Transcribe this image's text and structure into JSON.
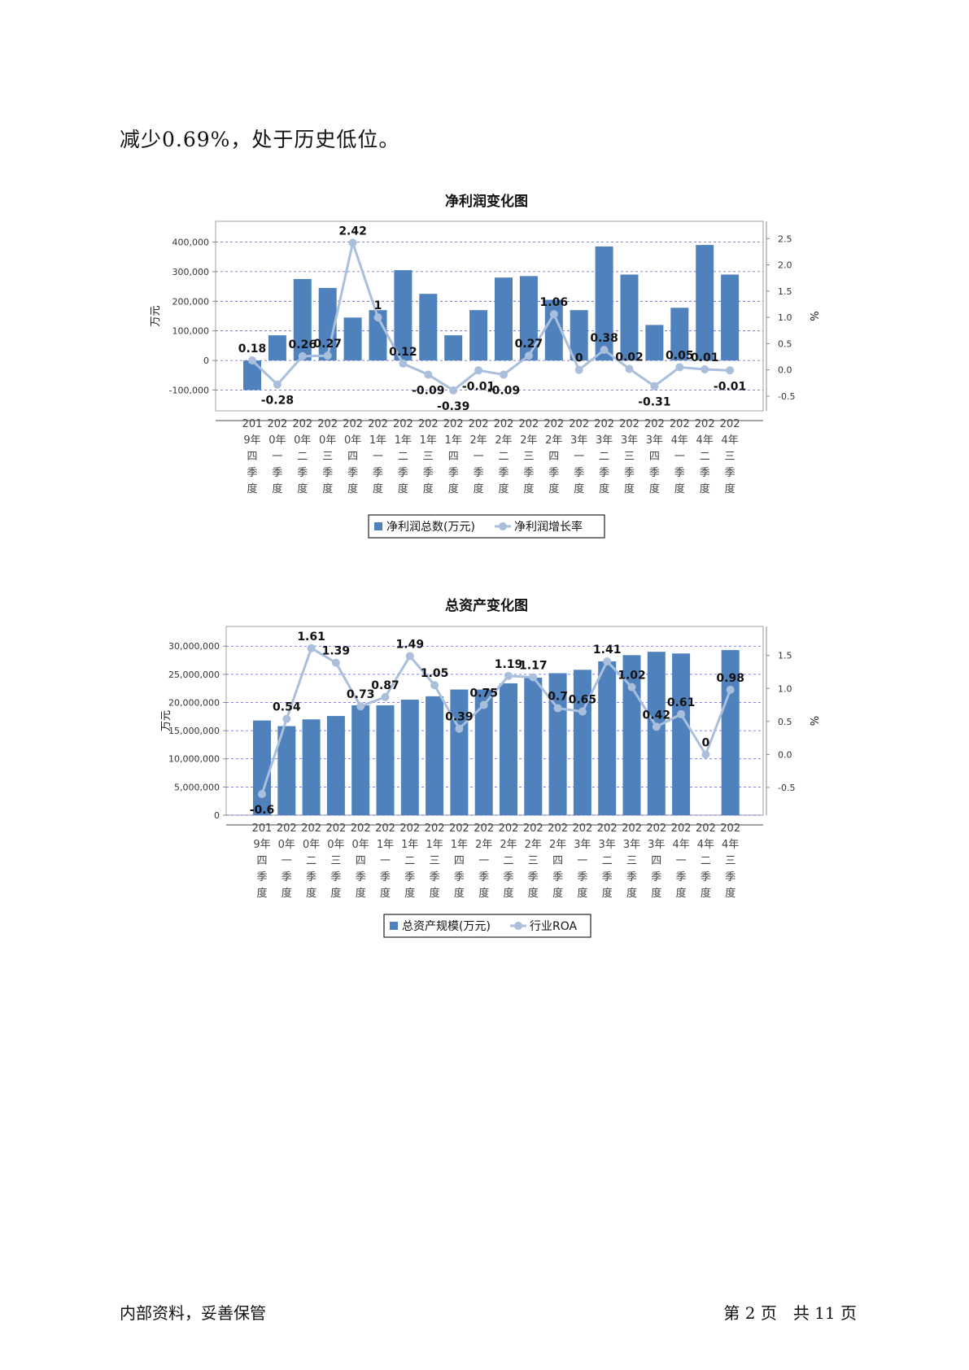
{
  "intro_text": "减少0.69%，处于历史低位。",
  "footer": {
    "left": "内部资料，妥善保管",
    "right": "第 2 页　共 11 页"
  },
  "colors": {
    "bar": "#4f81bd",
    "line": "#a9bfdc",
    "grid": "#5a5ad8",
    "axis": "#888888"
  },
  "categories": [
    [
      "201",
      "9年",
      "四",
      "季",
      "度"
    ],
    [
      "202",
      "0年",
      "一",
      "季",
      "度"
    ],
    [
      "202",
      "0年",
      "二",
      "季",
      "度"
    ],
    [
      "202",
      "0年",
      "三",
      "季",
      "度"
    ],
    [
      "202",
      "0年",
      "四",
      "季",
      "度"
    ],
    [
      "202",
      "1年",
      "一",
      "季",
      "度"
    ],
    [
      "202",
      "1年",
      "二",
      "季",
      "度"
    ],
    [
      "202",
      "1年",
      "三",
      "季",
      "度"
    ],
    [
      "202",
      "1年",
      "四",
      "季",
      "度"
    ],
    [
      "202",
      "2年",
      "一",
      "季",
      "度"
    ],
    [
      "202",
      "2年",
      "二",
      "季",
      "度"
    ],
    [
      "202",
      "2年",
      "三",
      "季",
      "度"
    ],
    [
      "202",
      "2年",
      "四",
      "季",
      "度"
    ],
    [
      "202",
      "3年",
      "一",
      "季",
      "度"
    ],
    [
      "202",
      "3年",
      "二",
      "季",
      "度"
    ],
    [
      "202",
      "3年",
      "三",
      "季",
      "度"
    ],
    [
      "202",
      "3年",
      "四",
      "季",
      "度"
    ],
    [
      "202",
      "4年",
      "一",
      "季",
      "度"
    ],
    [
      "202",
      "4年",
      "二",
      "季",
      "度"
    ],
    [
      "202",
      "4年",
      "三",
      "季",
      "度"
    ]
  ],
  "chart_data": [
    {
      "type": "bar",
      "title": "净利润变化图",
      "ylabel": "万元",
      "y2label": "%",
      "ylim": [
        -170000,
        470000
      ],
      "y2lim": [
        -0.78,
        2.83
      ],
      "yticks": [
        -100000,
        0,
        100000,
        200000,
        300000,
        400000
      ],
      "ytick_labels": [
        "-100,000",
        "0",
        "100,000",
        "200,000",
        "300,000",
        "400,000"
      ],
      "y2ticks": [
        -0.5,
        0.0,
        0.5,
        1.0,
        1.5,
        2.0,
        2.5
      ],
      "y2tick_labels": [
        "-0.5",
        "0.0",
        "0.5",
        "1.0",
        "1.5",
        "2.0",
        "2.5"
      ],
      "grid": true,
      "legend_placement": "bottom",
      "series": [
        {
          "name": "净利润总数(万元)",
          "kind": "bar",
          "values": [
            -100000,
            85000,
            275000,
            245000,
            145000,
            170000,
            305000,
            225000,
            85000,
            170000,
            280000,
            285000,
            205000,
            170000,
            385000,
            290000,
            120000,
            178000,
            390000,
            290000
          ]
        },
        {
          "name": "净利润增长率",
          "kind": "line",
          "axis": "right",
          "values": [
            0.18,
            -0.28,
            0.26,
            0.27,
            2.42,
            1,
            0.12,
            -0.09,
            -0.39,
            -0.01,
            -0.09,
            0.27,
            1.06,
            0,
            0.38,
            0.02,
            -0.31,
            0.05,
            0.01,
            -0.01
          ],
          "labels": [
            "0.18",
            "-0.28",
            "0.26",
            "0.27",
            "2.42",
            "1",
            "0.12",
            "-0.09",
            "-0.39",
            "-0.01",
            "-0.09",
            "0.27",
            "1.06",
            "0",
            "0.38",
            "0.02",
            "-0.31",
            "0.05",
            "0.01",
            "-0.01"
          ]
        }
      ]
    },
    {
      "type": "bar",
      "title": "总资产变化图",
      "ylabel": "万元",
      "y2label": "%",
      "ylim": [
        0,
        33500000
      ],
      "y2lim": [
        -0.92,
        1.94
      ],
      "yticks": [
        0,
        5000000,
        10000000,
        15000000,
        20000000,
        25000000,
        30000000
      ],
      "ytick_labels": [
        "0",
        "5,000,000",
        "10,000,000",
        "15,000,000",
        "20,000,000",
        "25,000,000",
        "30,000,000"
      ],
      "y2ticks": [
        -0.5,
        0.0,
        0.5,
        1.0,
        1.5
      ],
      "y2tick_labels": [
        "-0.5",
        "0.0",
        "0.5",
        "1.0",
        "1.5"
      ],
      "grid": true,
      "legend_placement": "bottom",
      "series": [
        {
          "name": "总资产规模(万元)",
          "kind": "bar",
          "values": [
            16800000,
            15800000,
            17000000,
            17600000,
            19500000,
            19500000,
            20500000,
            21100000,
            22300000,
            22300000,
            23400000,
            24400000,
            25200000,
            25800000,
            27300000,
            28400000,
            29000000,
            28700000,
            null,
            29300000
          ]
        },
        {
          "name": "行业ROA",
          "kind": "line",
          "axis": "right",
          "values": [
            -0.6,
            0.54,
            1.61,
            1.39,
            0.73,
            0.87,
            1.49,
            1.05,
            0.39,
            0.75,
            1.19,
            1.17,
            0.7,
            0.65,
            1.41,
            1.02,
            0.42,
            0.61,
            0,
            0.98
          ],
          "labels": [
            "-0.6",
            "0.54",
            "1.61",
            "1.39",
            "0.73",
            "0.87",
            "1.49",
            "1.05",
            "0.39",
            "0.75",
            "1.19",
            "1.17",
            "0.7",
            "0.65",
            "1.41",
            "1.02",
            "0.42",
            "0.61",
            "0",
            "0.98"
          ]
        }
      ]
    }
  ]
}
